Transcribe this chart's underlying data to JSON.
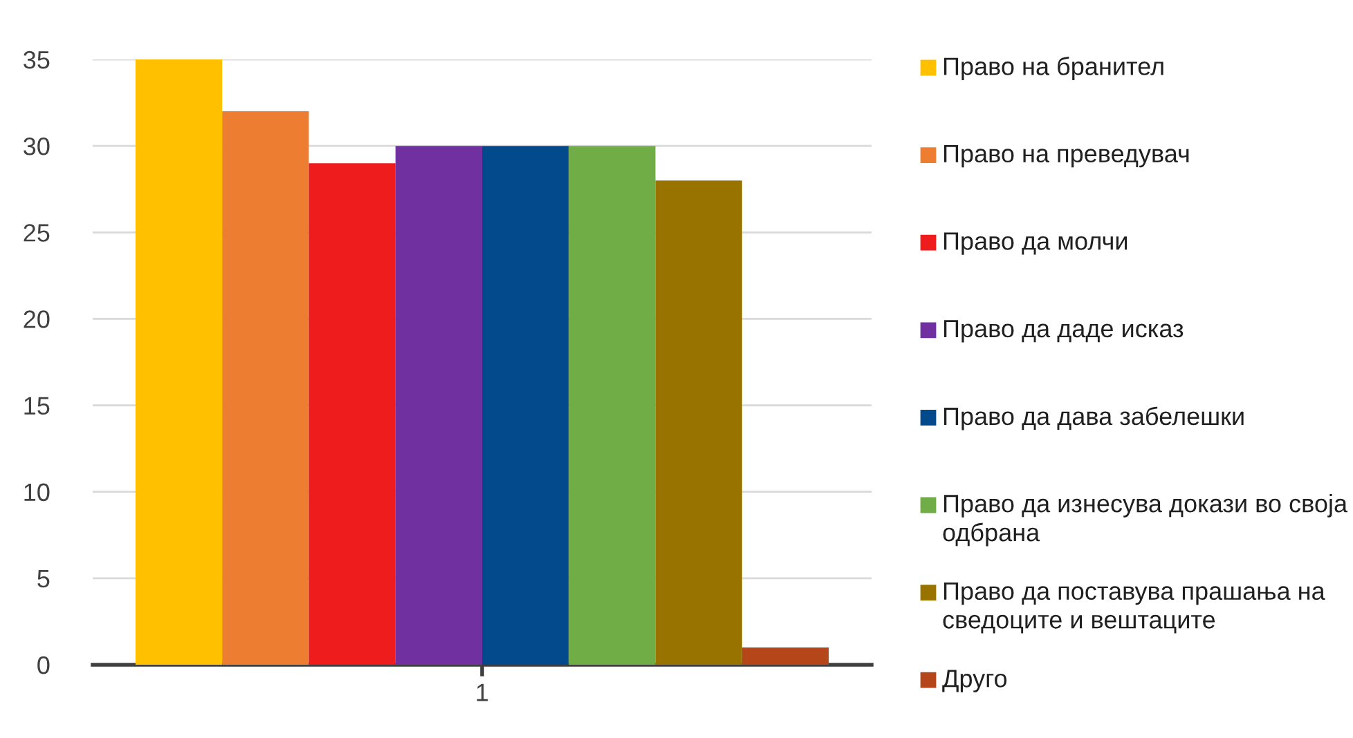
{
  "chart_data": {
    "type": "bar",
    "categories": [
      "1"
    ],
    "series": [
      {
        "name": "Право на бранител",
        "color": "#ffc000",
        "values": [
          35
        ]
      },
      {
        "name": "Право на преведувач",
        "color": "#ed7d31",
        "values": [
          32
        ]
      },
      {
        "name": "Право да молчи",
        "color": "#ee1c1c",
        "values": [
          29
        ]
      },
      {
        "name": "Право да даде исказ",
        "color": "#7030a0",
        "values": [
          30
        ]
      },
      {
        "name": "Право да дава забелешки",
        "color": "#034a8d",
        "values": [
          30
        ]
      },
      {
        "name": "Право да изнесува докази во своја одбрана",
        "color": "#70ad47",
        "values": [
          30
        ]
      },
      {
        "name": "Право да поставува прашања на сведоците и вештаците",
        "color": "#997300",
        "values": [
          28
        ]
      },
      {
        "name": "Друго",
        "color": "#b5461a",
        "values": [
          1
        ]
      }
    ],
    "ylim": [
      0,
      35
    ],
    "yticks": [
      0,
      5,
      10,
      15,
      20,
      25,
      30,
      35
    ],
    "grid": "y",
    "legend": "right"
  }
}
